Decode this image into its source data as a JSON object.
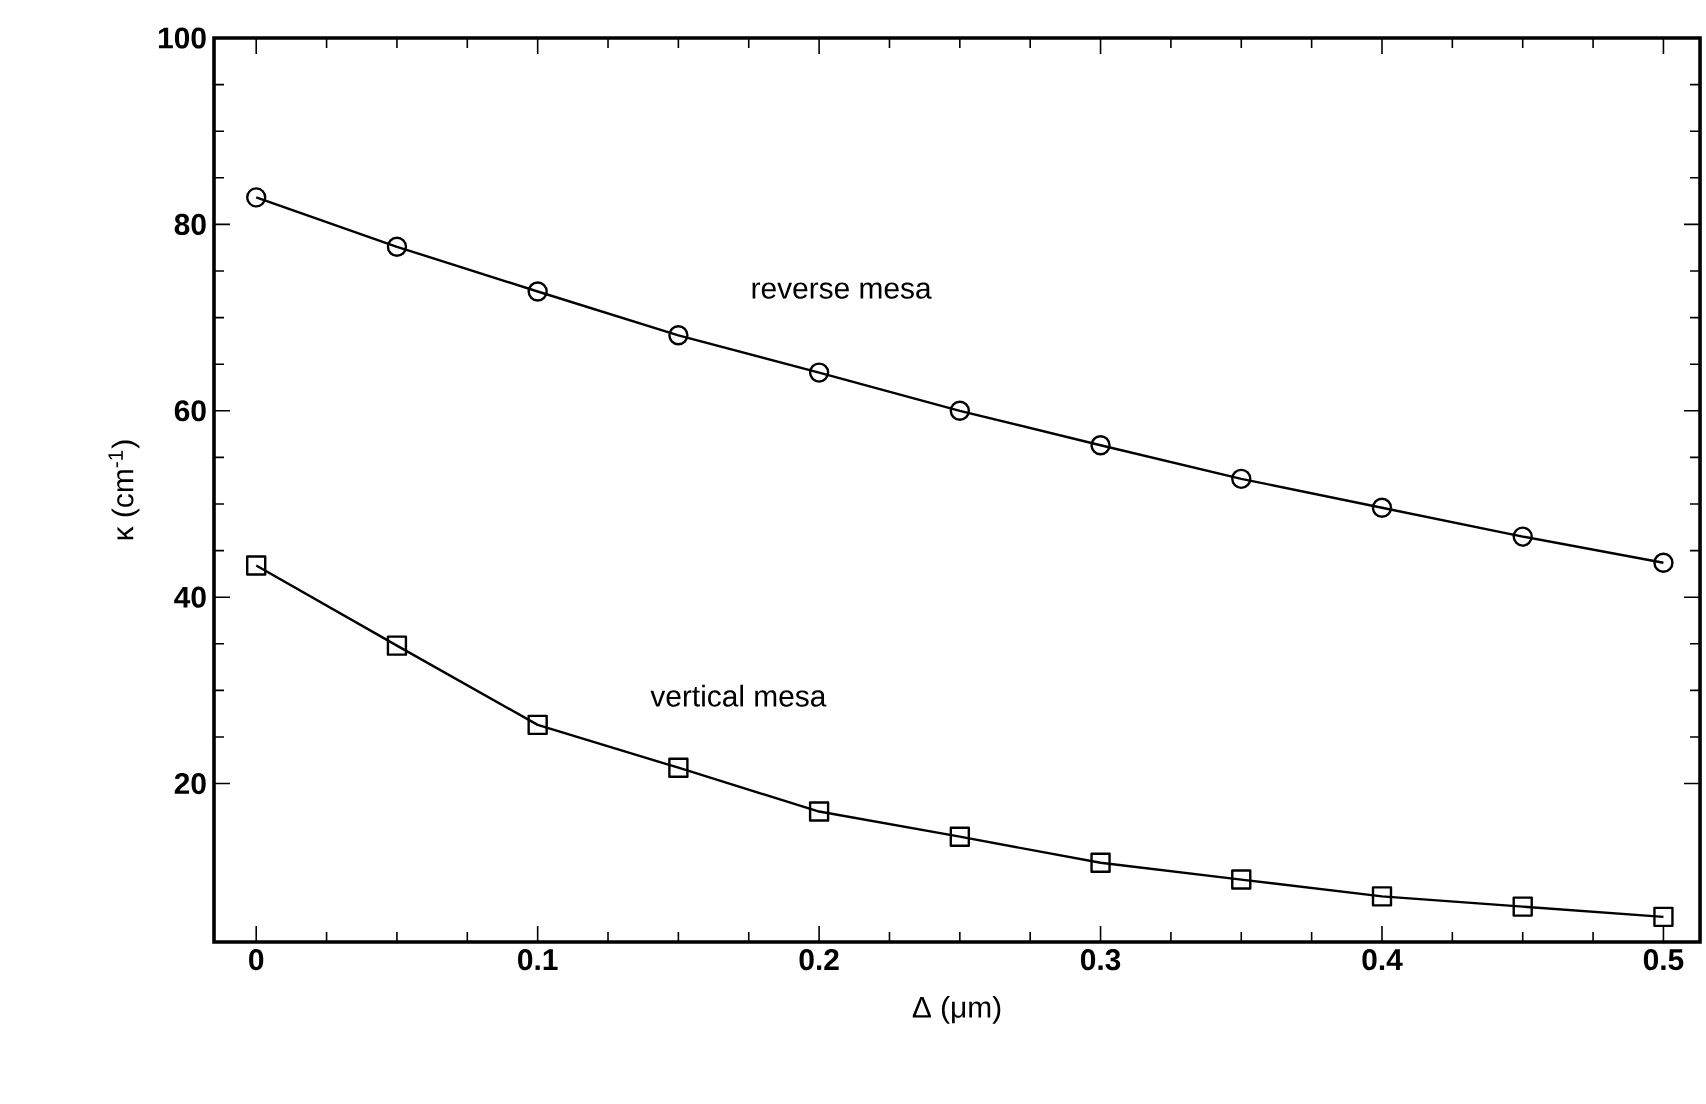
{
  "chart_data": {
    "type": "line",
    "xlabel": "Δ (μm)",
    "ylabel": "κ (cm$^{-1}$)",
    "x": [
      0,
      0.05,
      0.1,
      0.15,
      0.2,
      0.25,
      0.3,
      0.35,
      0.4,
      0.45,
      0.5
    ],
    "series": [
      {
        "name": "reverse mesa",
        "color": "#000000",
        "marker": "circle",
        "values": [
          82.9,
          77.6,
          72.8,
          68.1,
          64.1,
          60.0,
          56.3,
          52.7,
          49.6,
          46.5,
          43.7
        ]
      },
      {
        "name": "vertical mesa",
        "color": "#000000",
        "marker": "square",
        "values": [
          43.4,
          34.8,
          26.3,
          21.7,
          17.0,
          14.3,
          11.5,
          9.7,
          7.9,
          6.8,
          5.7
        ]
      }
    ],
    "xlim": [
      -0.015,
      0.513
    ],
    "ylim": [
      3,
      100
    ],
    "xticks": [
      0,
      0.1,
      0.2,
      0.3,
      0.4,
      0.5
    ],
    "yticks": [
      20,
      40,
      60,
      80,
      100
    ],
    "grid": false,
    "line_style": "solid"
  }
}
